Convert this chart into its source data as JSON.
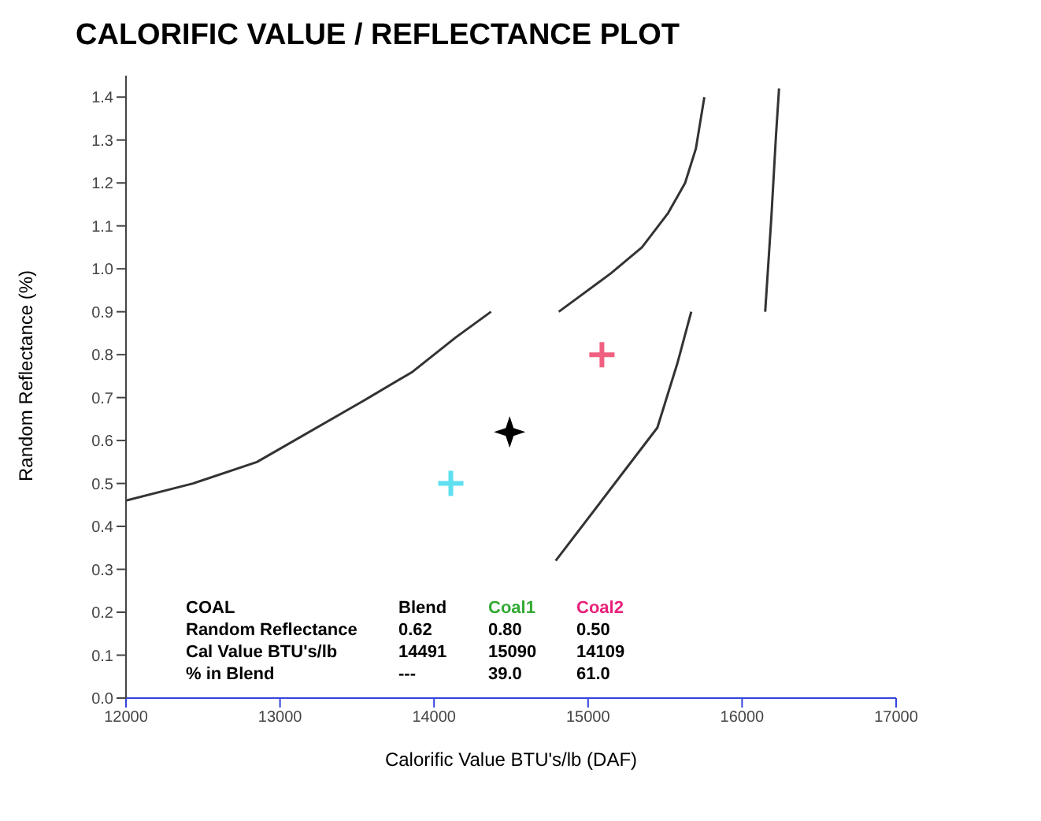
{
  "chart_data": {
    "type": "line",
    "title": "CALORIFIC VALUE / REFLECTANCE PLOT",
    "xlabel": "Calorific Value BTU's/lb (DAF)",
    "ylabel": "Random Reflectance (%)",
    "xlim": [
      12000,
      17000
    ],
    "xticks": [
      12000,
      13000,
      14000,
      15000,
      16000,
      17000
    ],
    "ylim": [
      0,
      1.45
    ],
    "yticks": [
      {
        "value": 0,
        "label": "0.0"
      },
      {
        "value": 0.1,
        "label": "0.1"
      },
      {
        "value": 0.2,
        "label": "0.2"
      },
      {
        "value": 0.3,
        "label": "0.3"
      },
      {
        "value": 0.4,
        "label": "0.4"
      },
      {
        "value": 0.5,
        "label": "0.5"
      },
      {
        "value": 0.6,
        "label": "0.6"
      },
      {
        "value": 0.7,
        "label": "0.7"
      },
      {
        "value": 0.8,
        "label": "0.8"
      },
      {
        "value": 0.9,
        "label": "0.9"
      },
      {
        "value": 1.0,
        "label": "1.0"
      },
      {
        "value": 1.1,
        "label": "1.1"
      },
      {
        "value": 1.2,
        "label": "1.2"
      },
      {
        "value": 1.3,
        "label": "1.3"
      },
      {
        "value": 1.4,
        "label": "1.4"
      }
    ],
    "grid": false,
    "series": [
      {
        "color": "#333333",
        "x": [
          12000,
          12435,
          12850,
          13530,
          13860,
          14140,
          14370
        ],
        "values": [
          0.46,
          0.5,
          0.55,
          0.69,
          0.76,
          0.84,
          0.9
        ]
      },
      {
        "color": "#333333",
        "x": [
          14810,
          15150,
          15350,
          15520,
          15630,
          15700,
          15755
        ],
        "values": [
          0.9,
          0.99,
          1.05,
          1.13,
          1.2,
          1.28,
          1.4
        ]
      },
      {
        "color": "#333333",
        "x": [
          14790,
          15450,
          15580,
          15670
        ],
        "values": [
          0.32,
          0.63,
          0.78,
          0.9
        ]
      },
      {
        "color": "#333333",
        "x": [
          16150,
          16190,
          16220,
          16240
        ],
        "values": [
          0.9,
          1.12,
          1.31,
          1.42
        ]
      },
      {
        "type": "scatter",
        "marker": "star",
        "color": "#000000",
        "x": [
          14491
        ],
        "values": [
          0.62
        ]
      },
      {
        "type": "scatter",
        "marker": "cross",
        "color": "#f06080",
        "x": [
          15090
        ],
        "values": [
          0.8
        ]
      },
      {
        "type": "scatter",
        "marker": "cross",
        "color": "#5ee0f0",
        "x": [
          14109
        ],
        "values": [
          0.5
        ]
      }
    ],
    "annotations": [
      "COAL",
      "Blend",
      "Coal1",
      "Coal2",
      "Random Reflectance",
      "0.62",
      "0.80",
      "0.50",
      "Cal Value BTU's/lb",
      "14491",
      "15090",
      "14109",
      "% in Blend",
      "---",
      "39.0",
      "61.0"
    ]
  }
}
